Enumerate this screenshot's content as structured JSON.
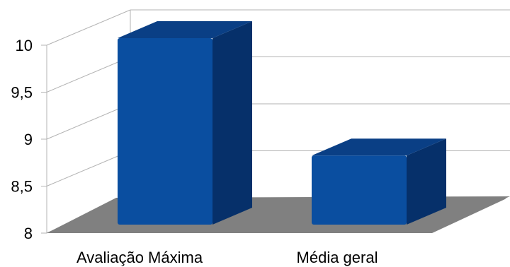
{
  "chart_data": {
    "type": "bar",
    "style": "3d-column",
    "categories": [
      "Avaliação Máxima",
      "Média geral"
    ],
    "values": [
      10,
      8.75
    ],
    "ylim": [
      8,
      10
    ],
    "yticks": [
      "8",
      "8,5",
      "9",
      "9,5",
      "10"
    ],
    "ytick_values": [
      8,
      8.5,
      9,
      9.5,
      10
    ],
    "title": "",
    "xlabel": "",
    "ylabel": "",
    "grid": true,
    "legend": "none",
    "colors": {
      "bar_front": "#0a4ea0",
      "bar_side": "#06306a",
      "bar_top": "#0a3f85",
      "floor": "#808080",
      "grid": "#b3b3b3"
    }
  }
}
